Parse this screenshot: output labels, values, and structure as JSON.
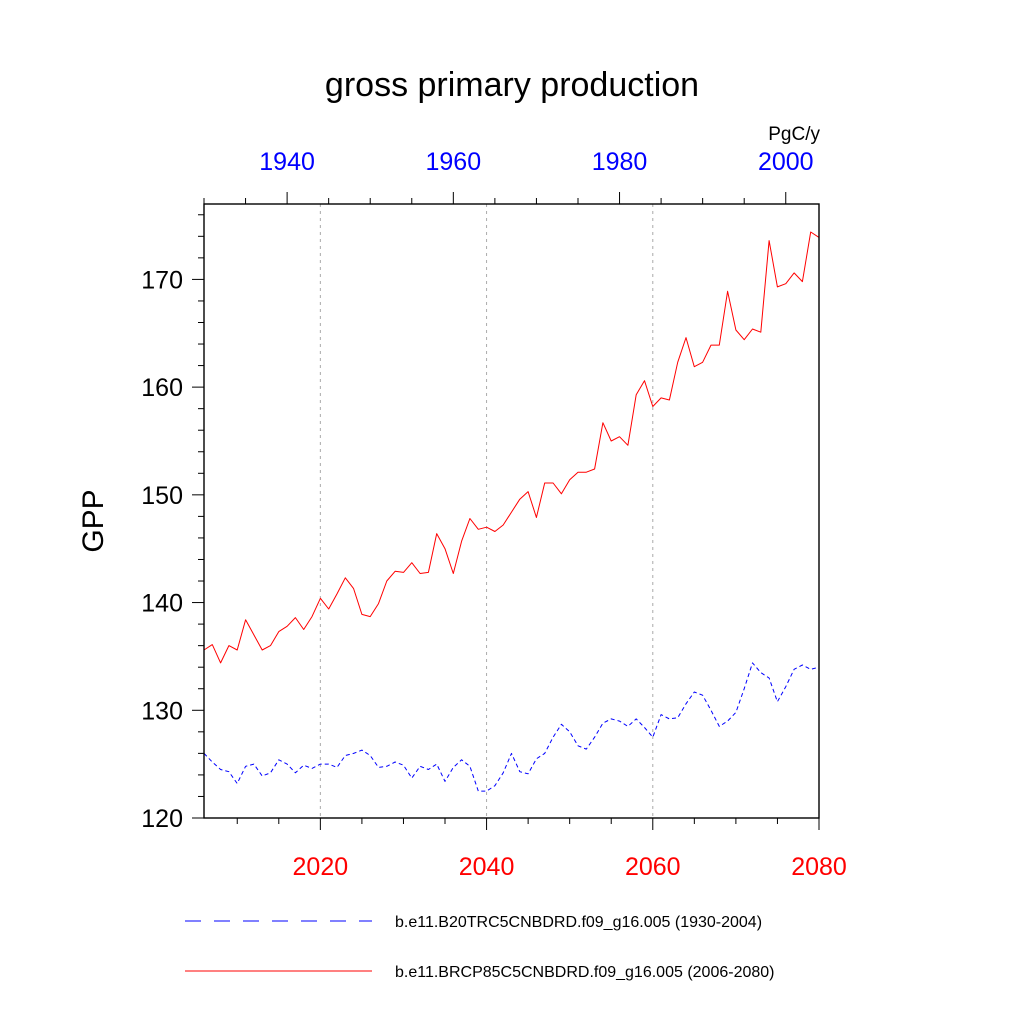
{
  "chart_data": {
    "type": "line",
    "title": "gross primary production",
    "units": "PgC/y",
    "ylabel": "GPP",
    "ylim": [
      120,
      177
    ],
    "yticks": [
      120,
      130,
      140,
      150,
      160,
      170
    ],
    "bottom_axis": {
      "xlim": [
        2006,
        2080
      ],
      "ticks": [
        2020,
        2040,
        2060,
        2080
      ],
      "color": "#ff0000"
    },
    "top_axis": {
      "xlim": [
        1930,
        2004
      ],
      "ticks": [
        1940,
        1960,
        1980,
        2000
      ],
      "color": "#0000ff"
    },
    "gridlines_at_bottom_years": [
      2020,
      2040,
      2060
    ],
    "series": [
      {
        "name": "b.e11.B20TRC5CNBDRD.f09_g16.005 (1930-2004)",
        "axis": "top",
        "color": "#0000ff",
        "style": "dashed",
        "x": [
          1930,
          1931,
          1932,
          1933,
          1934,
          1935,
          1936,
          1937,
          1938,
          1939,
          1940,
          1941,
          1942,
          1943,
          1944,
          1945,
          1946,
          1947,
          1948,
          1949,
          1950,
          1951,
          1952,
          1953,
          1954,
          1955,
          1956,
          1957,
          1958,
          1959,
          1960,
          1961,
          1962,
          1963,
          1964,
          1965,
          1966,
          1967,
          1968,
          1969,
          1970,
          1971,
          1972,
          1973,
          1974,
          1975,
          1976,
          1977,
          1978,
          1979,
          1980,
          1981,
          1982,
          1983,
          1984,
          1985,
          1986,
          1987,
          1988,
          1989,
          1990,
          1991,
          1992,
          1993,
          1994,
          1995,
          1996,
          1997,
          1998,
          1999,
          2000,
          2001,
          2002,
          2003,
          2004
        ],
        "values": [
          126.0,
          125.2,
          124.5,
          124.3,
          123.2,
          124.8,
          125.0,
          123.9,
          124.2,
          125.4,
          125.0,
          124.2,
          124.9,
          124.6,
          125.0,
          125.0,
          124.7,
          125.8,
          126.0,
          126.3,
          125.8,
          124.7,
          124.8,
          125.2,
          124.9,
          123.7,
          124.8,
          124.5,
          125.0,
          123.4,
          124.7,
          125.4,
          124.8,
          122.5,
          122.5,
          123.0,
          124.2,
          126.0,
          124.3,
          124.1,
          125.5,
          126.0,
          127.5,
          128.7,
          128.0,
          126.7,
          126.4,
          127.5,
          128.8,
          129.2,
          129.0,
          128.5,
          129.2,
          128.4,
          127.5,
          129.6,
          129.2,
          129.3,
          130.6,
          131.7,
          131.4,
          130.0,
          128.5,
          129.0,
          129.8,
          132.0,
          134.4,
          133.5,
          133.0,
          130.8,
          132.2,
          133.8,
          134.2,
          133.8,
          134.0
        ]
      },
      {
        "name": "b.e11.BRCP85C5CNBDRD.f09_g16.005 (2006-2080)",
        "axis": "bottom",
        "color": "#ff0000",
        "style": "solid",
        "x": [
          2006,
          2007,
          2008,
          2009,
          2010,
          2011,
          2012,
          2013,
          2014,
          2015,
          2016,
          2017,
          2018,
          2019,
          2020,
          2021,
          2022,
          2023,
          2024,
          2025,
          2026,
          2027,
          2028,
          2029,
          2030,
          2031,
          2032,
          2033,
          2034,
          2035,
          2036,
          2037,
          2038,
          2039,
          2040,
          2041,
          2042,
          2043,
          2044,
          2045,
          2046,
          2047,
          2048,
          2049,
          2050,
          2051,
          2052,
          2053,
          2054,
          2055,
          2056,
          2057,
          2058,
          2059,
          2060,
          2061,
          2062,
          2063,
          2064,
          2065,
          2066,
          2067,
          2068,
          2069,
          2070,
          2071,
          2072,
          2073,
          2074,
          2075,
          2076,
          2077,
          2078,
          2079,
          2080
        ],
        "values": [
          135.6,
          136.1,
          134.4,
          136.0,
          135.6,
          138.4,
          137.0,
          135.6,
          136.0,
          137.3,
          137.8,
          138.6,
          137.5,
          138.7,
          140.4,
          139.4,
          140.8,
          142.3,
          141.3,
          138.9,
          138.7,
          139.9,
          142.0,
          142.9,
          142.8,
          143.7,
          142.7,
          142.8,
          146.4,
          145.0,
          142.7,
          145.7,
          147.8,
          146.8,
          147.0,
          146.6,
          147.2,
          148.4,
          149.6,
          150.3,
          147.9,
          151.1,
          151.1,
          150.1,
          151.4,
          152.1,
          152.1,
          152.4,
          156.7,
          155.0,
          155.4,
          154.6,
          159.3,
          160.6,
          158.2,
          159.0,
          158.8,
          162.3,
          164.6,
          161.9,
          162.3,
          163.9,
          163.9,
          168.9,
          165.3,
          164.4,
          165.4,
          165.1,
          173.6,
          169.3,
          169.6,
          170.6,
          169.8,
          174.4,
          173.9
        ]
      }
    ]
  }
}
